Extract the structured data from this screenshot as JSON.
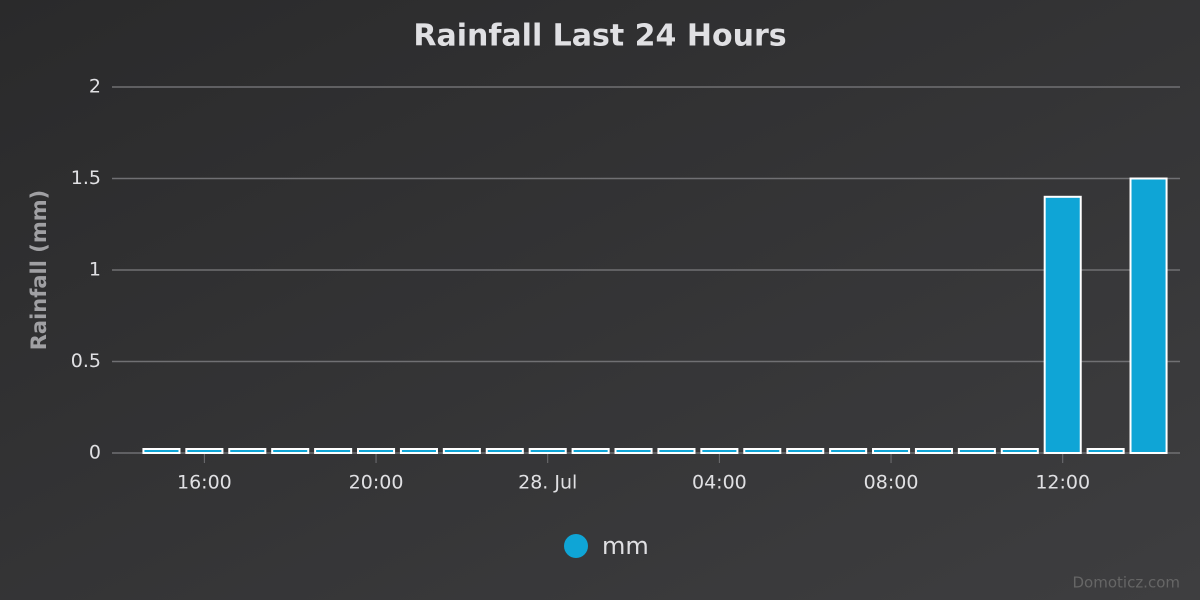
{
  "chart_data": {
    "type": "bar",
    "title": "Rainfall Last 24 Hours",
    "y_label": "Rainfall (mm)",
    "categories": [
      null,
      "16:00",
      null,
      null,
      null,
      "20:00",
      null,
      null,
      null,
      "28. Jul",
      null,
      null,
      null,
      "04:00",
      null,
      null,
      null,
      "08:00",
      null,
      null,
      null,
      "12:00",
      null,
      null
    ],
    "series": [
      {
        "name": "mm",
        "color": "#0fa5d6",
        "values": [
          0,
          0,
          0,
          0,
          0,
          0,
          0,
          0,
          0,
          0,
          0,
          0,
          0,
          0,
          0,
          0,
          0,
          0,
          0,
          0,
          0,
          1.4,
          0,
          1.5
        ]
      }
    ],
    "ylim": [
      0,
      2
    ],
    "yticks": [
      0,
      0.5,
      1,
      1.5,
      2
    ],
    "grid": true,
    "legend": "bottom",
    "credits": "Domoticz.com"
  }
}
